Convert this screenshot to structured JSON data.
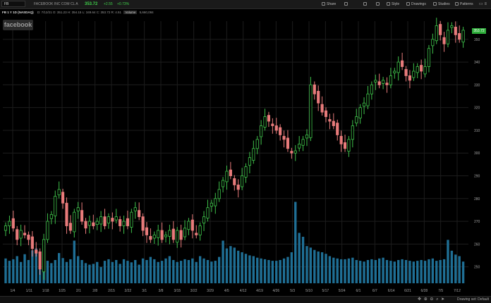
{
  "toolbar": {
    "symbol": "FB",
    "company": "FACEBOOK INC COM CL A",
    "last": "353.72",
    "change": "+2.55",
    "change_pct": "+0.73%",
    "buttons": [
      {
        "label": "Share",
        "icon": "share-icon"
      },
      {
        "label": "Style",
        "icon": "style-icon"
      },
      {
        "label": "Drawings",
        "icon": "pencil-icon"
      },
      {
        "label": "Studies",
        "icon": "studies-icon"
      },
      {
        "label": "Patterns",
        "icon": "patterns-icon"
      }
    ]
  },
  "legend": {
    "title": "FB 1 Y 1D (NASDAQ)",
    "date": "D: 7/12/21",
    "open": "O: 351.23",
    "high": "H: 354.15",
    "low": "L: 349.64",
    "close": "C: 353.72",
    "range": "R: 4.51",
    "volume_label": "Volume",
    "volume": "5,660,084"
  },
  "watermark": "facebook",
  "price_tag": "353.72",
  "colors": {
    "up": "#3fc14a",
    "down": "#e87b7b",
    "volume": "#1f6f95",
    "grid": "#1d1d1d"
  },
  "chart_data": {
    "type": "candlestick",
    "price_ticks": [
      250,
      260,
      270,
      280,
      290,
      300,
      310,
      320,
      330,
      340,
      350
    ],
    "price_tick_labels": [
      "250",
      "260",
      "270",
      "280",
      "290",
      "300",
      "310",
      "320",
      "330",
      "340",
      "350"
    ],
    "ylim": [
      244,
      358
    ],
    "date_labels": [
      "1/4",
      "1/11",
      "1/18",
      "1/25",
      "2/1",
      "2/8",
      "2/15",
      "2/22",
      "3/1",
      "3/8",
      "3/15",
      "3/22",
      "3/29",
      "4/5",
      "4/12",
      "4/19",
      "4/26",
      "5/3",
      "5/10",
      "5/17",
      "5/24",
      "6/1",
      "6/7",
      "6/14",
      "6/21",
      "6/28",
      "7/5",
      "7/12"
    ],
    "last_price": 353.72,
    "closes": [
      268,
      270,
      267,
      262,
      266,
      264,
      262,
      258,
      256,
      249,
      262,
      270,
      273,
      281,
      284,
      278,
      268,
      266,
      274,
      276,
      270,
      267,
      270,
      268,
      270,
      272,
      268,
      272,
      270,
      272,
      268,
      270,
      268,
      274,
      276,
      272,
      266,
      264,
      262,
      264,
      266,
      262,
      264,
      266,
      262,
      266,
      262,
      267,
      270,
      266,
      264,
      268,
      272,
      276,
      278,
      280,
      284,
      288,
      292,
      290,
      286,
      284,
      290,
      294,
      298,
      302,
      306,
      312,
      316,
      314,
      312,
      310,
      308,
      306,
      302,
      300,
      301,
      304,
      306,
      308,
      330,
      326,
      322,
      318,
      316,
      314,
      312,
      308,
      304,
      302,
      306,
      312,
      316,
      320,
      322,
      326,
      330,
      332,
      330,
      332,
      330,
      334,
      336,
      340,
      338,
      334,
      332,
      336,
      338,
      336,
      338,
      346,
      350,
      356,
      352,
      348,
      354,
      356,
      352,
      350,
      354
    ],
    "volume_heights": [
      64,
      58,
      62,
      70,
      55,
      75,
      60,
      85,
      90,
      72,
      68,
      58,
      52,
      60,
      78,
      65,
      55,
      62,
      110,
      70,
      60,
      52,
      48,
      50,
      55,
      42,
      58,
      62,
      55,
      60,
      50,
      62,
      58,
      54,
      60,
      48,
      64,
      60,
      68,
      62,
      55,
      58,
      64,
      70,
      60,
      55,
      58,
      62,
      60,
      64,
      55,
      70,
      64,
      60,
      56,
      58,
      68,
      110,
      90,
      96,
      92,
      84,
      80,
      76,
      72,
      70,
      66,
      64,
      62,
      60,
      58,
      58,
      60,
      64,
      68,
      80,
      210,
      130,
      120,
      96,
      92,
      86,
      82,
      80,
      76,
      70,
      66,
      64,
      62,
      62,
      64,
      66,
      60,
      58,
      56,
      60,
      62,
      60,
      64,
      66,
      60,
      58,
      56,
      60,
      62,
      60,
      58,
      56,
      58,
      60,
      58,
      62,
      64,
      58,
      60,
      62,
      112,
      84,
      74,
      70,
      56
    ]
  },
  "bottombar": {
    "drawing_set": "Drawing set: Default"
  }
}
